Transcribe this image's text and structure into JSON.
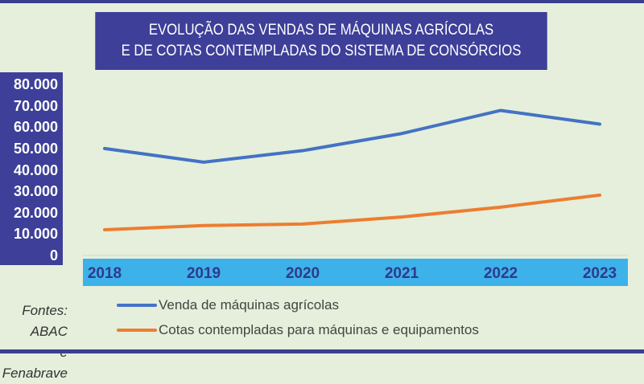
{
  "chart_data": {
    "type": "line",
    "title": [
      "EVOLUÇÃO DAS VENDAS DE MÁQUINAS AGRÍCOLAS",
      "E DE COTAS CONTEMPLADAS DO SISTEMA DE CONSÓRCIOS"
    ],
    "categories": [
      "2018",
      "2019",
      "2020",
      "2021",
      "2022",
      "2023"
    ],
    "y_ticks": [
      "80.000",
      "70.000",
      "60.000",
      "50.000",
      "40.000",
      "30.000",
      "20.000",
      "10.000",
      "0"
    ],
    "ylim": [
      0,
      80000
    ],
    "grid": false,
    "legend_position": "bottom",
    "series": [
      {
        "name": "Venda de máquinas agrícolas",
        "color": "#4472c4",
        "values": [
          50000,
          43600,
          49000,
          57000,
          67800,
          61400
        ]
      },
      {
        "name": "Cotas contempladas para máquinas e equipamentos",
        "color": "#ed7d31",
        "values": [
          12000,
          14000,
          14700,
          18000,
          22600,
          28200
        ]
      }
    ],
    "source": [
      "Fontes: ABAC",
      "e Fenabrave"
    ]
  },
  "colors": {
    "title_bg": "#3d3f98",
    "x_band": "#3db1e9",
    "background": "#e5efdb"
  }
}
